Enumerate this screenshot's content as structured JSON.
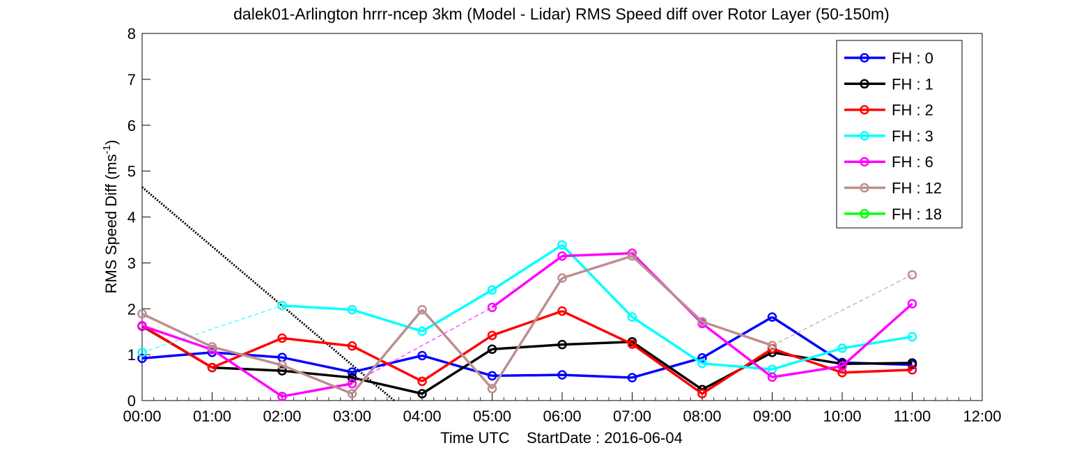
{
  "chart_data": {
    "type": "line",
    "title": "dalek01-Arlington hrrr-ncep 3km (Model - Lidar) RMS Speed diff over Rotor Layer (50-150m)",
    "xlabel": "Time UTC    StartDate : 2016-06-04",
    "ylabel_main": "RMS Speed Diff (ms",
    "ylabel_sup": "-1",
    "ylabel_tail": ")",
    "xticks": [
      "00:00",
      "01:00",
      "02:00",
      "03:00",
      "04:00",
      "05:00",
      "06:00",
      "07:00",
      "08:00",
      "09:00",
      "10:00",
      "11:00",
      "12:00"
    ],
    "yticks": [
      "0",
      "1",
      "2",
      "3",
      "4",
      "5",
      "6",
      "7",
      "8"
    ],
    "xlim": [
      0,
      12
    ],
    "ylim": [
      0,
      8
    ],
    "legend_position": "top-right",
    "series": [
      {
        "name": "FH : 0",
        "color": "#0000ff",
        "x": [
          0,
          1,
          2,
          3,
          4,
          5,
          6,
          7,
          8,
          9,
          10,
          11
        ],
        "values": [
          0.92,
          1.05,
          0.94,
          0.62,
          0.98,
          0.54,
          0.56,
          0.5,
          0.93,
          1.82,
          0.83,
          0.78
        ]
      },
      {
        "name": "FH : 1",
        "color": "#000000",
        "x": [
          0,
          1,
          2,
          3,
          4,
          5,
          6,
          7,
          8,
          9,
          10,
          11
        ],
        "values": [
          1.62,
          0.72,
          0.65,
          0.5,
          0.15,
          1.12,
          1.22,
          1.28,
          0.24,
          1.05,
          0.8,
          0.82
        ]
      },
      {
        "name": "FH : 2",
        "color": "#ff0000",
        "x": [
          0,
          1,
          2,
          3,
          4,
          5,
          6,
          7,
          8,
          9,
          10,
          11
        ],
        "values": [
          1.63,
          0.72,
          1.36,
          1.19,
          0.42,
          1.42,
          1.95,
          1.23,
          0.15,
          1.13,
          0.61,
          0.67
        ]
      },
      {
        "name": "FH : 3",
        "color": "#00ffff",
        "x": [
          0,
          2,
          3,
          4,
          5,
          6,
          7,
          8,
          9,
          10,
          11
        ],
        "values": [
          1.05,
          2.07,
          1.98,
          1.51,
          2.41,
          3.39,
          1.82,
          0.81,
          0.68,
          1.14,
          1.39
        ],
        "dashed_segments": [
          [
            0,
            2
          ]
        ]
      },
      {
        "name": "FH : 6",
        "color": "#ff00ff",
        "x": [
          0,
          1,
          2,
          3,
          5,
          6,
          7,
          8,
          9,
          10,
          11
        ],
        "values": [
          1.63,
          1.11,
          0.09,
          0.37,
          2.03,
          3.15,
          3.21,
          1.68,
          0.51,
          0.75,
          2.11
        ],
        "dashed_segments": [
          [
            3,
            5
          ]
        ]
      },
      {
        "name": "FH : 12",
        "color": "#bc8f8f",
        "x": [
          0,
          1,
          2,
          3,
          4,
          5,
          6,
          7,
          8,
          9,
          11
        ],
        "values": [
          1.89,
          1.17,
          0.77,
          0.15,
          1.98,
          0.26,
          2.67,
          3.15,
          1.72,
          1.2,
          2.74
        ],
        "dashed_segments": [
          [
            9,
            11
          ]
        ]
      },
      {
        "name": "FH : 18",
        "color": "#00ff00",
        "x": [],
        "values": []
      }
    ],
    "dotted_line": {
      "x": [
        0,
        3.6
      ],
      "values": [
        4.65,
        0
      ]
    }
  }
}
